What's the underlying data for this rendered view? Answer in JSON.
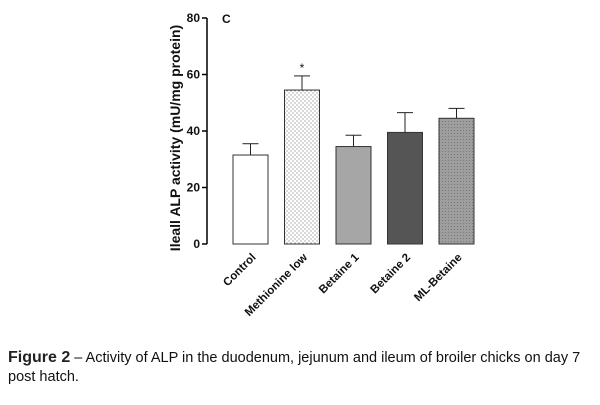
{
  "chart_data": {
    "type": "bar",
    "panel_label": "C",
    "ylabel": "Ileall ALP activity (mU/mg protein)",
    "ylim": [
      0,
      80
    ],
    "yticks": [
      "0",
      "20",
      "40",
      "60",
      "80"
    ],
    "categories": [
      "Control",
      "Methionine low",
      "Betaine 1",
      "Betaine 2",
      "ML-Betaine"
    ],
    "values": [
      31.5,
      54.5,
      34.5,
      39.5,
      44.5
    ],
    "errors": [
      4,
      5,
      4,
      7,
      3.5
    ],
    "significance": [
      "",
      "*",
      "",
      "",
      ""
    ],
    "fills": [
      "#ffffff",
      "dots",
      "#a6a6a6",
      "#555555",
      "#a0a0a0"
    ]
  },
  "caption": {
    "label": "Figure 2",
    "text": " – Activity of ALP in the duodenum, jejunum and ileum of broiler chicks on day 7 post hatch."
  }
}
